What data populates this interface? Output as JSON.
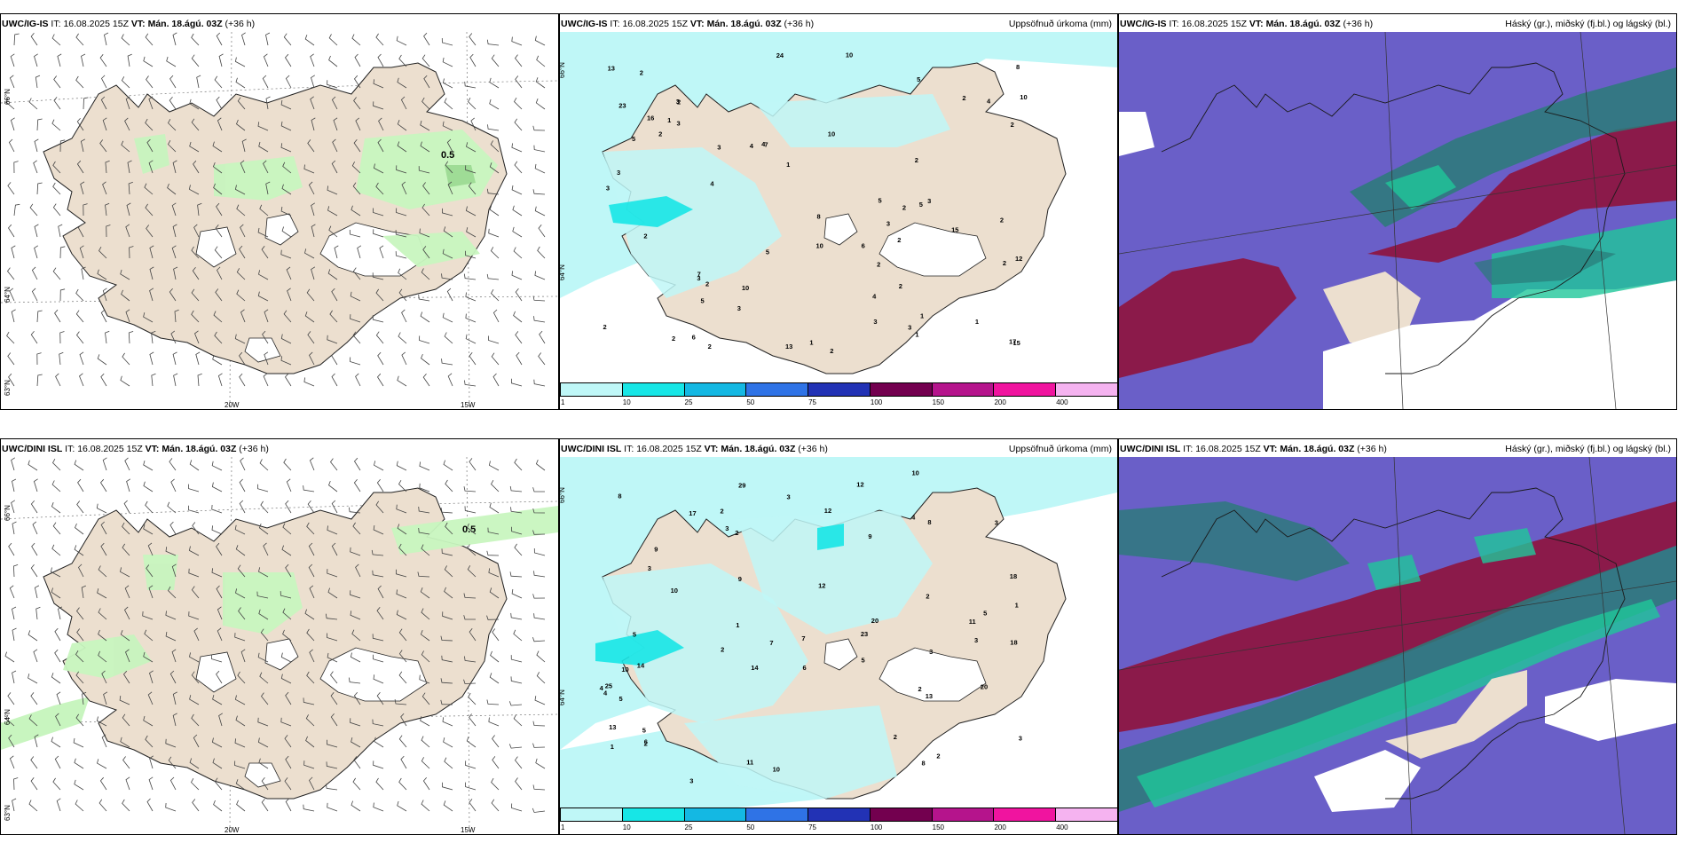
{
  "rows": [
    {
      "model": "UWC/IG-IS",
      "it_label": "IT:",
      "it": "16.08.2025 15Z",
      "vt_label": "VT:",
      "vt": "Mán. 18.ágú. 03Z",
      "lead": "(+36 h)",
      "wind_annotation": "0.5",
      "lat_labels": [
        "66°N",
        "64°N",
        "63°N"
      ],
      "lon_labels": [
        "20W",
        "15W"
      ]
    },
    {
      "model": "UWC/DINI ISL",
      "it_label": "IT:",
      "it": "16.08.2025 15Z",
      "vt_label": "VT:",
      "vt": "Mán. 18.ágú. 03Z",
      "lead": "(+36 h)",
      "wind_annotation": "0.5",
      "lat_labels": [
        "66°N",
        "64°N",
        "63°N"
      ],
      "lon_labels": [
        "20W",
        "15W"
      ]
    }
  ],
  "precip_title": "Uppsöfnuð úrkoma (mm)",
  "cloud_title": "Háský (gr.), miðský (fj.bl.) og lágský (bl.)",
  "precip_lat_labels": [
    "66°N",
    "64°N"
  ],
  "colorbar": {
    "ticks": [
      "1",
      "10",
      "25",
      "50",
      "75",
      "100",
      "150",
      "200",
      "400"
    ],
    "colors": [
      "#bff7f7",
      "#17e6e6",
      "#14b8e3",
      "#2f73e6",
      "#2232b5",
      "#73004f",
      "#b5148c",
      "#f0149f",
      "#f5b3f0"
    ]
  },
  "precip_values": [
    [
      "6",
      "5",
      "2",
      "1",
      "1",
      "2",
      "2",
      "2",
      "1",
      "1",
      "3",
      "4",
      "4",
      "5",
      "5",
      "10",
      "10",
      "7",
      "3",
      "2",
      "2",
      "3",
      "4",
      "3",
      "10",
      "13",
      "12",
      "15",
      "15",
      "16",
      "17",
      "10",
      "8",
      "23",
      "24",
      "13",
      "10",
      "3",
      "5",
      "6",
      "8",
      "4",
      "2",
      "3",
      "2",
      "2",
      "7",
      "3",
      "3",
      "1",
      "2",
      "2",
      "2",
      "2",
      "5",
      "3",
      "3",
      "2",
      "2",
      "2",
      "1",
      "3",
      "4",
      "5",
      "2",
      "2"
    ],
    [
      "5",
      "5",
      "1",
      "3",
      "7",
      "8",
      "2",
      "9",
      "12",
      "13",
      "12",
      "17",
      "20",
      "11",
      "18",
      "10",
      "10",
      "14",
      "14",
      "29",
      "25",
      "20",
      "9",
      "8",
      "23",
      "18",
      "12",
      "5",
      "10",
      "8",
      "13",
      "11",
      "5",
      "10",
      "9",
      "3",
      "2",
      "4",
      "7",
      "6",
      "6",
      "1",
      "3",
      "3",
      "2",
      "2",
      "2",
      "3",
      "5",
      "4",
      "3",
      "3",
      "2",
      "2",
      "1",
      "2",
      "3",
      "4"
    ]
  ]
}
